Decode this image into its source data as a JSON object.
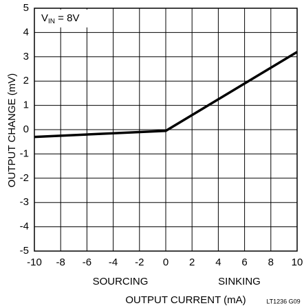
{
  "chart_data": {
    "type": "line",
    "x_label": "OUTPUT CURRENT (mA)",
    "y_label": "OUTPUT CHANGE (mV)",
    "annotation": [
      "V",
      "IN",
      " = 8V"
    ],
    "region_labels": [
      "SOURCING",
      "SINKING"
    ],
    "footnote": "LT1236 G09",
    "series": [
      {
        "color": "#000000",
        "x": [
          -10,
          0,
          10
        ],
        "values": [
          -0.3,
          -0.05,
          3.2
        ]
      }
    ],
    "xlim": [
      -10,
      10
    ],
    "xticks": [
      -10,
      -8,
      -6,
      -4,
      -2,
      0,
      2,
      4,
      6,
      8,
      10
    ],
    "ylim": [
      -5,
      5
    ],
    "yticks": [
      -5,
      -4,
      -3,
      -2,
      -1,
      0,
      1,
      2,
      3,
      4,
      5
    ],
    "grid": true
  }
}
